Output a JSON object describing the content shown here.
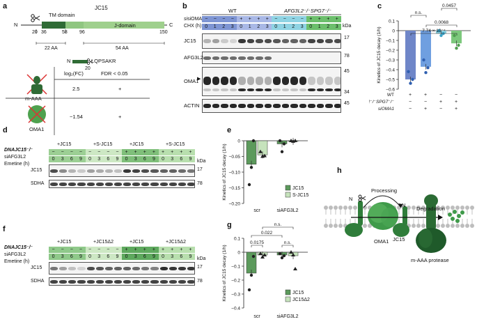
{
  "panels": {
    "a": "a",
    "b": "b",
    "c": "c",
    "d": "d",
    "e": "e",
    "f": "f",
    "g": "g",
    "h": "h"
  },
  "panel_a": {
    "protein": "JC15",
    "n_term": "N",
    "c_term": "C",
    "tm_label": "TM domain",
    "jdomain_label": "J-domain",
    "positions": [
      "20",
      "36",
      "58",
      "96",
      "150"
    ],
    "aa_22": "22 AA",
    "aa_54": "54 AA",
    "peptide_n": "N",
    "peptide": "LQPSAKR",
    "peptide_pos": "20",
    "col_log2fc": "log₂(FC)",
    "col_fdr": "FDR < 0.05",
    "rows": [
      {
        "name": "m-AAA",
        "fc": "2.5",
        "fdr": "+"
      },
      {
        "name": "OMA1",
        "fc": "−1.54",
        "fdr": "+"
      }
    ]
  },
  "panel_b": {
    "wt": "WT",
    "ko": "AFG3L2⁻/⁻SPG7⁻/⁻",
    "sioma1": "siOMA1",
    "chx": "CHX (h)",
    "kda": "kDa",
    "minus": "−",
    "plus": "+",
    "times": [
      "0",
      "1",
      "2",
      "3"
    ],
    "rows": [
      {
        "label": "JC15",
        "kda": "17"
      },
      {
        "label": "AFG3L2",
        "kda": "78"
      },
      {
        "label": "OMA1",
        "kda": "45",
        "kda2": "34"
      },
      {
        "label": "ACTIN",
        "kda": "45"
      }
    ]
  },
  "panel_c": {
    "ylabel": "Kinetics of JC15 decay (1/h)",
    "yticks": [
      "0.1",
      "0",
      "−0.1",
      "−0.2",
      "−0.3",
      "−0.4",
      "−0.5",
      "−0.6"
    ],
    "sig": [
      "n.s.",
      "7.74 × 10⁻⁴",
      "0.0068",
      "0.0457"
    ],
    "row_labels": [
      "WT",
      "AFG3L2⁻/⁻SPG7⁻/⁻",
      "siOMA1"
    ],
    "row_signs": [
      [
        "+",
        "+",
        "−",
        "−"
      ],
      [
        "−",
        "−",
        "+",
        "+"
      ],
      [
        "−",
        "+",
        "−",
        "+"
      ]
    ]
  },
  "chart_data": [
    {
      "type": "bar",
      "panel": "c",
      "categories": [
        "WT",
        "WT siOMA1",
        "AFG3L2/SPG7 KO",
        "AFG3L2/SPG7 KO siOMA1"
      ],
      "values": [
        -0.5,
        -0.37,
        -0.03,
        -0.13
      ],
      "points": [
        [
          -0.42,
          -0.54,
          -0.5
        ],
        [
          -0.3,
          -0.43,
          -0.38
        ],
        [
          0.0,
          -0.05,
          -0.03
        ],
        [
          -0.05,
          -0.18,
          -0.15
        ]
      ],
      "colors": [
        "#6f86c8",
        "#6f9fe0",
        "#8ad0e0",
        "#7cc87c"
      ],
      "ylabel": "Kinetics of JC15 decay (1/h)",
      "ylim": [
        -0.6,
        0.1
      ]
    },
    {
      "type": "bar",
      "panel": "e",
      "categories": [
        "scr",
        "siAFG3L2"
      ],
      "series": [
        {
          "name": "JC15",
          "values": [
            -0.075,
            -0.01
          ],
          "points": [
            [
              -0.14,
              -0.085,
              0.0
            ],
            [
              0.0,
              -0.035,
              -0.01
            ]
          ]
        },
        {
          "name": "S-JC15",
          "values": [
            -0.045,
            -0.002
          ],
          "points": [
            [
              -0.035,
              -0.05,
              -0.048
            ],
            [
              0.0,
              -0.002,
              0.0
            ]
          ]
        }
      ],
      "ylabel": "Kinetics of JC15 decay (1/h)",
      "ylim": [
        -0.2,
        0.0
      ]
    },
    {
      "type": "bar",
      "panel": "g",
      "categories": [
        "scr",
        "siAFG3L2"
      ],
      "series": [
        {
          "name": "JC15",
          "values": [
            -0.15,
            -0.02
          ],
          "points": [
            [
              -0.27,
              -0.165,
              -0.03
            ],
            [
              -0.01,
              -0.04,
              -0.025
            ]
          ]
        },
        {
          "name": "JC15Δ2",
          "values": [
            -0.02,
            -0.025
          ],
          "points": [
            [
              -0.01,
              -0.035,
              -0.02
            ],
            [
              0.0,
              -0.02,
              -0.12
            ]
          ]
        }
      ],
      "sig": [
        "0.0175",
        "0.022",
        "n.s.",
        "n.s."
      ],
      "ylabel": "Kinetics of JC15 decay (1/h)",
      "ylim": [
        -0.4,
        0.1
      ]
    }
  ],
  "panel_e": {
    "yticks": [
      "0",
      "−0.05",
      "−0.10",
      "−0.15",
      "−0.20"
    ],
    "xcat": [
      "scr",
      "siAFG3L2"
    ],
    "legend": [
      "JC15",
      "S-JC15"
    ],
    "ylabel": "Kinetics of JC15 decay (1/h)"
  },
  "panel_g": {
    "yticks": [
      "0.1",
      "0",
      "−0.1",
      "−0.2",
      "−0.3",
      "−0.4"
    ],
    "xcat": [
      "scr",
      "siAFG3L2"
    ],
    "legend": [
      "JC15",
      "JC15Δ2"
    ],
    "ylabel": "Kinetics of JC15 decay (1/h)"
  },
  "panel_d": {
    "cell": "DNAJC15⁻/⁻",
    "si": "siAFG3L2",
    "emetine": "Emetine (h)",
    "groups": [
      "+JC15",
      "+S-JC15",
      "+JC15",
      "+S-JC15"
    ],
    "times": [
      "0",
      "3",
      "6",
      "9"
    ],
    "minus": "−",
    "plus": "+",
    "kda": "kDa",
    "rows": [
      {
        "label": "JC15",
        "kda": "17"
      },
      {
        "label": "SDHA",
        "kda": "78"
      }
    ]
  },
  "panel_f": {
    "cell": "DNAJC15⁻/⁻",
    "si": "siAFG3L2",
    "emetine": "Emetine (h)",
    "groups": [
      "+JC15",
      "+JC15Δ2",
      "+JC15",
      "+JC15Δ2"
    ],
    "times": [
      "0",
      "3",
      "6",
      "9"
    ],
    "minus": "−",
    "plus": "+",
    "kda": "kDa",
    "rows": [
      {
        "label": "JC15",
        "kda": "17"
      },
      {
        "label": "SDHA",
        "kda": "78"
      }
    ]
  },
  "panel_h": {
    "processing": "Processing",
    "degradation": "Degradation",
    "oma1": "OMA1",
    "jc15_left": "JC15",
    "jc15_right": "JC15",
    "n1": "N",
    "n2": "N",
    "maaa": "m-AAA protease"
  }
}
